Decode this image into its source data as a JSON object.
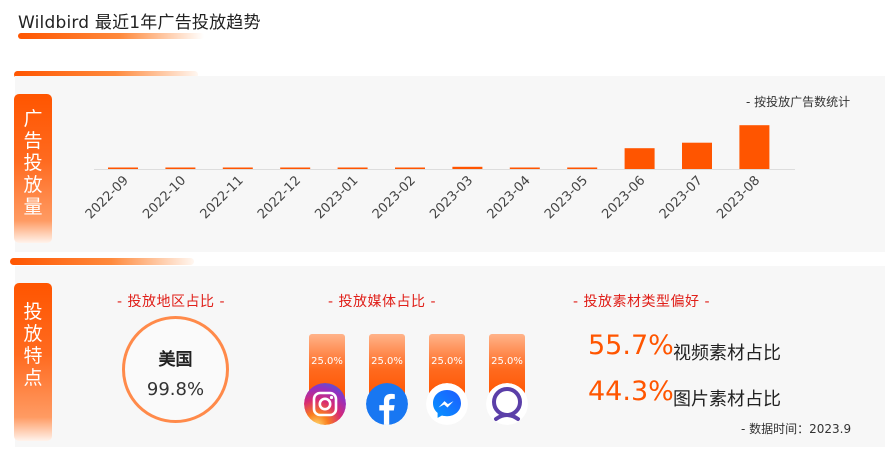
{
  "header": {
    "title": "Wildbird 最近1年广告投放趋势"
  },
  "volume_tab": [
    "广",
    "告",
    "投",
    "放",
    "量"
  ],
  "features_tab": [
    "投",
    "放",
    "特",
    "点"
  ],
  "chart_note": "- 按投放广告数统计",
  "chart_data": {
    "type": "bar",
    "categories": [
      "2022-09",
      "2022-10",
      "2022-11",
      "2022-12",
      "2023-01",
      "2023-02",
      "2023-03",
      "2023-04",
      "2023-05",
      "2023-06",
      "2023-07",
      "2023-08"
    ],
    "values": [
      1,
      1,
      1,
      1,
      1,
      1,
      2,
      1,
      1,
      19,
      24,
      40
    ],
    "ylim": [
      0,
      42
    ],
    "color": "#ff5500",
    "grid": false
  },
  "region": {
    "title": "- 投放地区占比 -",
    "name": "美国",
    "percent": "99.8%"
  },
  "media": {
    "title": "- 投放媒体占比 -",
    "items": [
      {
        "name": "instagram-icon",
        "percent": "25.0%",
        "share": 25.0
      },
      {
        "name": "facebook-icon",
        "percent": "25.0%",
        "share": 25.0
      },
      {
        "name": "messenger-icon",
        "percent": "25.0%",
        "share": 25.0
      },
      {
        "name": "audience-network-icon",
        "percent": "25.0%",
        "share": 25.0
      }
    ]
  },
  "materials": {
    "title": "- 投放素材类型偏好 -",
    "video_pct": "55.7%",
    "video_label": "视频素材占比",
    "image_pct": "44.3%",
    "image_label": "图片素材占比"
  },
  "footer": {
    "data_time": "- 数据时间：2023.9"
  }
}
